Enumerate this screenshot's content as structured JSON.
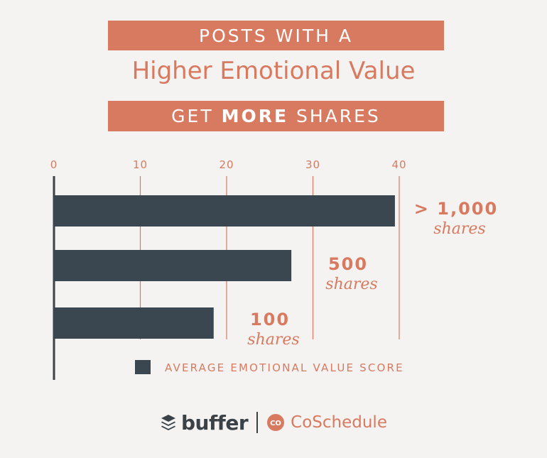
{
  "header": {
    "line1": "POSTS WITH A",
    "line2": "Higher Emotional Value",
    "line3_prefix": "GET",
    "line3_bold": "MORE",
    "line3_suffix": "SHARES"
  },
  "chart_data": {
    "type": "bar",
    "orientation": "horizontal",
    "categories": [
      "> 1,000 shares",
      "500 shares",
      "100 shares"
    ],
    "category_labels": [
      {
        "number": "> 1,000",
        "unit": "shares"
      },
      {
        "number": "500",
        "unit": "shares"
      },
      {
        "number": "100",
        "unit": "shares"
      }
    ],
    "series": [
      {
        "name": "AVERAGE EMOTIONAL VALUE SCORE",
        "values": [
          39.5,
          27.5,
          18.5
        ],
        "color": "#3a4750"
      }
    ],
    "xticks": [
      "0",
      "10",
      "20",
      "30",
      "40"
    ],
    "xlim": [
      0,
      40
    ],
    "grid": true,
    "gridline_color": "#d87a60",
    "legend": "bottom",
    "label_color": "#d87a60"
  },
  "footer": {
    "buffer": "buffer",
    "buffer_icon": "stack-layers-icon",
    "coschedule": "CoSchedule",
    "coschedule_icon": "co-badge-icon",
    "coschedule_badge": "CO"
  }
}
